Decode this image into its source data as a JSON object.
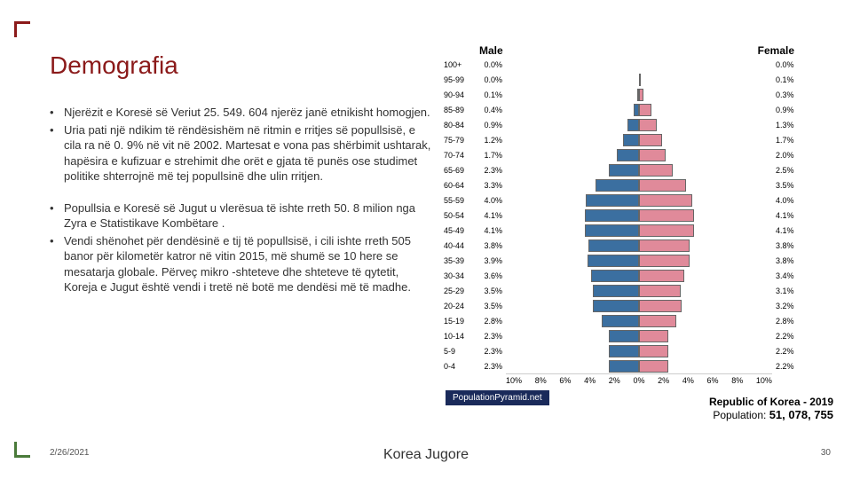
{
  "accent_red": "#8b1a1a",
  "accent_green": "#4a7a3a",
  "title": "Demografia",
  "bullets_a": [
    "Njerëzit e Koresë së Veriut 25. 549. 604 njerëz janë etnikisht homogjen.",
    "Uria pati një ndikim të rëndësishëm në ritmin e rritjes së popullsisë, e cila ra në 0. 9% në vit në 2002. Martesat e vona pas shërbimit ushtarak, hapësira e kufizuar e strehimit dhe orët e gjata të punës ose studimet politike shterrojnë më tej popullsinë dhe ulin rritjen."
  ],
  "bullets_b": [
    "Popullsia e Koresë së Jugut u vlerësua të ishte rreth 50. 8 milion nga Zyra e Statistikave Kombëtare .",
    "Vendi shënohet për dendësinë e tij të popullsisë, i cili ishte rreth 505 banor për kilometër katror në vitin 2015, më shumë se 10 here se mesatarja globale. Përveç mikro -shteteve dhe shteteve të qytetit, Koreja e Jugut është vendi i tretë në botë me dendësi më të madhe."
  ],
  "chart": {
    "male_label": "Male",
    "female_label": "Female",
    "male_color": "#3b6fa0",
    "female_color": "#e08a9a",
    "bar_border": "#666666",
    "max_pct": 10,
    "axis_ticks": [
      "10%",
      "8%",
      "6%",
      "4%",
      "2%",
      "0%",
      "2%",
      "4%",
      "6%",
      "8%",
      "10%"
    ],
    "rows": [
      {
        "age": "100+",
        "m": 0.0,
        "f": 0.0
      },
      {
        "age": "95-99",
        "m": 0.0,
        "f": 0.1
      },
      {
        "age": "90-94",
        "m": 0.1,
        "f": 0.3
      },
      {
        "age": "85-89",
        "m": 0.4,
        "f": 0.9
      },
      {
        "age": "80-84",
        "m": 0.9,
        "f": 1.3
      },
      {
        "age": "75-79",
        "m": 1.2,
        "f": 1.7
      },
      {
        "age": "70-74",
        "m": 1.7,
        "f": 2.0
      },
      {
        "age": "65-69",
        "m": 2.3,
        "f": 2.5
      },
      {
        "age": "60-64",
        "m": 3.3,
        "f": 3.5
      },
      {
        "age": "55-59",
        "m": 4.0,
        "f": 4.0
      },
      {
        "age": "50-54",
        "m": 4.1,
        "f": 4.1
      },
      {
        "age": "45-49",
        "m": 4.1,
        "f": 4.1
      },
      {
        "age": "40-44",
        "m": 3.8,
        "f": 3.8
      },
      {
        "age": "35-39",
        "m": 3.9,
        "f": 3.8
      },
      {
        "age": "30-34",
        "m": 3.6,
        "f": 3.4
      },
      {
        "age": "25-29",
        "m": 3.5,
        "f": 3.1
      },
      {
        "age": "20-24",
        "m": 3.5,
        "f": 3.2
      },
      {
        "age": "15-19",
        "m": 2.8,
        "f": 2.8
      },
      {
        "age": "10-14",
        "m": 2.3,
        "f": 2.2
      },
      {
        "age": "5-9",
        "m": 2.3,
        "f": 2.2
      },
      {
        "age": "0-4",
        "m": 2.3,
        "f": 2.2
      }
    ],
    "badge": "PopulationPyramid.net",
    "footer_title": "Republic of Korea - 2019",
    "footer_pop_label": "Population: ",
    "footer_pop_value": "51, 078, 755"
  },
  "caption": "Korea Jugore",
  "date": "2/26/2021",
  "page": "30"
}
